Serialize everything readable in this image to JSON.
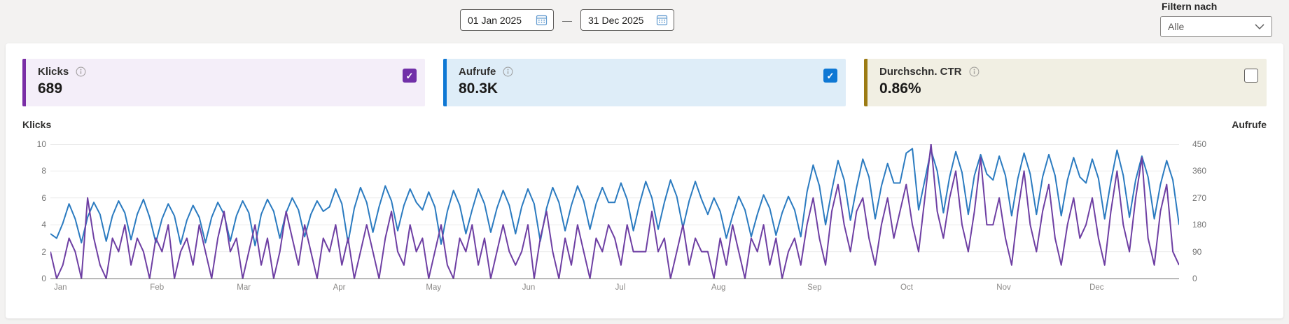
{
  "topbar": {
    "date_from": "01 Jan 2025",
    "date_to": "31 Dec 2025",
    "range_separator": "—",
    "filter_label": "Filtern nach",
    "filter_value": "Alle"
  },
  "icons": {
    "checkmark": "✓"
  },
  "cards": [
    {
      "label": "Klicks",
      "value": "689",
      "checked": true,
      "accent": "#7a2ea6",
      "bg": "#f4eef9",
      "checkbox_color": "#7130a8"
    },
    {
      "label": "Aufrufe",
      "value": "80.3K",
      "checked": true,
      "accent": "#0f78d4",
      "bg": "#deedf8",
      "checkbox_color": "#0f78d4"
    },
    {
      "label": "Durchschn. CTR",
      "value": "0.86%",
      "checked": false,
      "accent": "#9c7b14",
      "bg": "#f1efe3",
      "checkbox_color": null
    }
  ],
  "chart_data": {
    "type": "line",
    "title": "",
    "left_axis": {
      "label": "Klicks",
      "ticks": [
        10,
        8,
        6,
        4,
        2,
        0
      ],
      "range": [
        0,
        10
      ]
    },
    "right_axis": {
      "label": "Aufrufe",
      "ticks": [
        450,
        360,
        270,
        180,
        90,
        0
      ],
      "range": [
        0,
        450
      ]
    },
    "x_axis": {
      "months": [
        "Jan",
        "Feb",
        "Mar",
        "Apr",
        "May",
        "Jun",
        "Jul",
        "Aug",
        "Sep",
        "Oct",
        "Nov",
        "Dec"
      ],
      "month_start_days": [
        0,
        31,
        59,
        90,
        120,
        151,
        181,
        212,
        243,
        273,
        304,
        334
      ],
      "total_days": 365
    },
    "sample_interval_days": 2,
    "grid_color": "#ececec",
    "axis_line_color": "#6f6f6f",
    "legend": "none",
    "series": [
      {
        "name": "Aufrufe",
        "axis": "right",
        "color": "#2b7bc0",
        "values": [
          150,
          135,
          185,
          250,
          200,
          120,
          205,
          255,
          215,
          125,
          210,
          260,
          220,
          130,
          215,
          265,
          205,
          120,
          200,
          250,
          210,
          115,
          195,
          245,
          205,
          120,
          205,
          255,
          215,
          125,
          210,
          260,
          220,
          110,
          215,
          265,
          225,
          135,
          220,
          270,
          230,
          140,
          215,
          260,
          225,
          240,
          300,
          250,
          120,
          235,
          305,
          255,
          155,
          240,
          310,
          260,
          160,
          245,
          300,
          255,
          230,
          290,
          240,
          115,
          225,
          295,
          245,
          150,
          230,
          300,
          250,
          155,
          235,
          295,
          245,
          150,
          240,
          300,
          250,
          125,
          235,
          305,
          255,
          160,
          245,
          310,
          260,
          165,
          250,
          305,
          255,
          255,
          320,
          265,
          160,
          250,
          325,
          270,
          165,
          255,
          330,
          275,
          170,
          260,
          325,
          265,
          215,
          270,
          225,
          135,
          210,
          275,
          230,
          140,
          215,
          280,
          235,
          145,
          220,
          275,
          230,
          140,
          290,
          380,
          310,
          180,
          295,
          395,
          330,
          195,
          305,
          400,
          340,
          200,
          310,
          385,
          320,
          320,
          420,
          435,
          230,
          330,
          430,
          360,
          220,
          340,
          425,
          355,
          215,
          345,
          415,
          350,
          330,
          410,
          345,
          210,
          335,
          420,
          350,
          215,
          340,
          415,
          345,
          210,
          330,
          405,
          340,
          320,
          400,
          335,
          200,
          325,
          430,
          345,
          205,
          330,
          410,
          340,
          200,
          315,
          395,
          330,
          180
        ]
      },
      {
        "name": "Klicks",
        "axis": "left",
        "color": "#6e3fa3",
        "values": [
          2,
          0,
          1,
          3,
          2,
          0,
          6,
          3,
          1,
          0,
          3,
          2,
          4,
          1,
          3,
          2,
          0,
          3,
          2,
          4,
          0,
          2,
          3,
          1,
          4,
          2,
          0,
          3,
          5,
          2,
          3,
          0,
          2,
          4,
          1,
          3,
          0,
          2,
          5,
          3,
          1,
          4,
          2,
          0,
          3,
          2,
          4,
          1,
          3,
          0,
          2,
          4,
          2,
          0,
          3,
          5,
          2,
          1,
          4,
          2,
          3,
          0,
          2,
          4,
          1,
          0,
          3,
          2,
          4,
          1,
          3,
          0,
          2,
          4,
          2,
          1,
          2,
          4,
          0,
          3,
          5,
          2,
          0,
          3,
          1,
          4,
          2,
          0,
          3,
          2,
          4,
          3,
          1,
          4,
          2,
          2,
          2,
          5,
          2,
          3,
          0,
          2,
          4,
          1,
          3,
          2,
          2,
          0,
          3,
          1,
          4,
          2,
          0,
          3,
          2,
          4,
          1,
          3,
          0,
          2,
          3,
          1,
          4,
          6,
          3,
          1,
          5,
          7,
          4,
          2,
          5,
          6,
          3,
          1,
          4,
          6,
          3,
          5,
          7,
          4,
          2,
          6,
          10,
          5,
          3,
          6,
          8,
          4,
          2,
          5,
          9,
          4,
          4,
          6,
          3,
          1,
          5,
          8,
          4,
          2,
          5,
          7,
          3,
          1,
          4,
          6,
          3,
          4,
          6,
          3,
          1,
          5,
          8,
          4,
          2,
          6,
          9,
          3,
          1,
          5,
          7,
          2,
          1
        ]
      }
    ]
  }
}
